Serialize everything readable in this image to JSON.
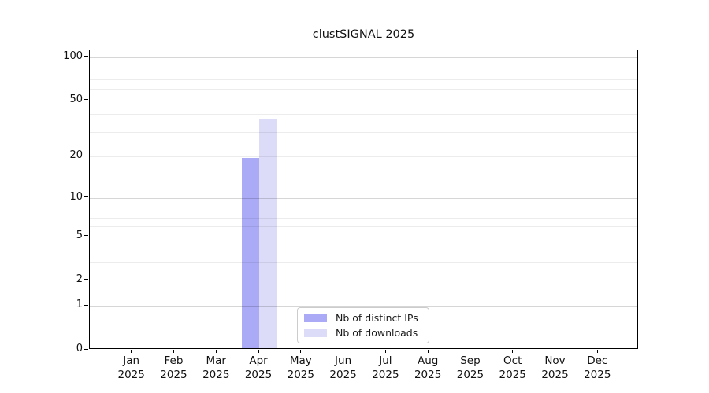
{
  "chart_data": {
    "type": "bar",
    "title": "clustSIGNAL 2025",
    "year_label": "2025",
    "categories": [
      "Jan",
      "Feb",
      "Mar",
      "Apr",
      "May",
      "Jun",
      "Jul",
      "Aug",
      "Sep",
      "Oct",
      "Nov",
      "Dec"
    ],
    "series": [
      {
        "name": "Nb of distinct IPs",
        "color": "#aaaaf6",
        "values": [
          0,
          0,
          0,
          19,
          0,
          0,
          0,
          0,
          0,
          0,
          0,
          0
        ]
      },
      {
        "name": "Nb of downloads",
        "color": "#dcdcf8",
        "values": [
          0,
          0,
          0,
          36,
          0,
          0,
          0,
          0,
          0,
          0,
          0,
          0
        ]
      }
    ],
    "yticks": [
      0,
      1,
      2,
      5,
      10,
      20,
      50,
      100
    ],
    "ylim": [
      0,
      110
    ],
    "yscale": "log10(value+1)",
    "y_major_gridlines": [
      1,
      10,
      100
    ],
    "y_minor_gridlines": [
      2,
      3,
      4,
      5,
      6,
      7,
      8,
      9,
      20,
      30,
      40,
      50,
      60,
      70,
      80,
      90
    ],
    "legend_position": "bottom-center-inside",
    "grid": "on"
  }
}
